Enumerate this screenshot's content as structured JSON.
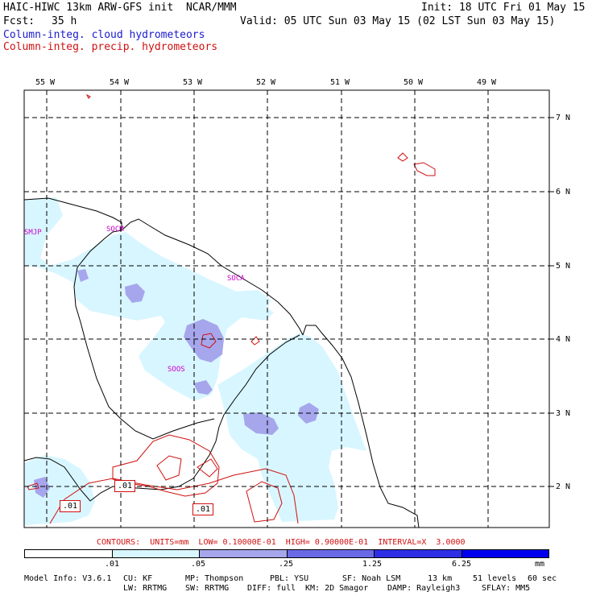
{
  "header": {
    "model_title": "HAIC-HIWC 13km ARW-GFS init  NCAR/MMM",
    "init": "Init: 18 UTC Fri 01 May 15",
    "fcst_label": "Fcst:",
    "fcst_value": "35 h",
    "valid": "Valid: 05 UTC Sun 03 May 15 (02 LST Sun 03 May 15)",
    "legend_cloud": "Column-integ. cloud hydrometeors",
    "legend_precip": "Column-integ. precip. hydrometeors"
  },
  "colors": {
    "cloud_text": "#1a1acc",
    "precip_text": "#d01010",
    "site_text": "#cc00cc",
    "shade_1": "#d8f6ff",
    "shade_2": "#a6a6ec",
    "shade_3": "#6a6ae6",
    "shade_4": "#2e2ee6",
    "shade_5": "#0000ee"
  },
  "map": {
    "lon_labels": [
      "55 W",
      "54 W",
      "53 W",
      "52 W",
      "51 W",
      "50 W",
      "49 W"
    ],
    "lat_labels": [
      "7 N",
      "6 N",
      "5 N",
      "4 N",
      "3 N",
      "2 N"
    ],
    "sites": [
      "SMJP",
      "SOCM",
      "SOCA",
      "SOOS"
    ],
    "contour_labels": [
      ".01",
      ".01",
      ".01"
    ]
  },
  "contours_line": {
    "text": "CONTOURS:  UNITS=mm  LOW= 0.10000E-01  HIGH= 0.90000E-01  INTERVAL=X  3.0000"
  },
  "colorbar": {
    "ticks": [
      ".01",
      ".05",
      ".25",
      "1.25",
      "6.25"
    ],
    "units": "mm"
  },
  "model_info": {
    "line1": [
      "Model Info: V3.6.1",
      "CU: KF",
      "MP: Thompson",
      "PBL: YSU",
      "SF: Noah LSM",
      "13 km",
      "51 levels",
      "60 sec"
    ],
    "line2": [
      "LW: RRTMG",
      "SW: RRTMG",
      "DIFF: full",
      "KM: 2D Smagor",
      "DAMP: Rayleigh3",
      "SFLAY: MM5"
    ]
  }
}
